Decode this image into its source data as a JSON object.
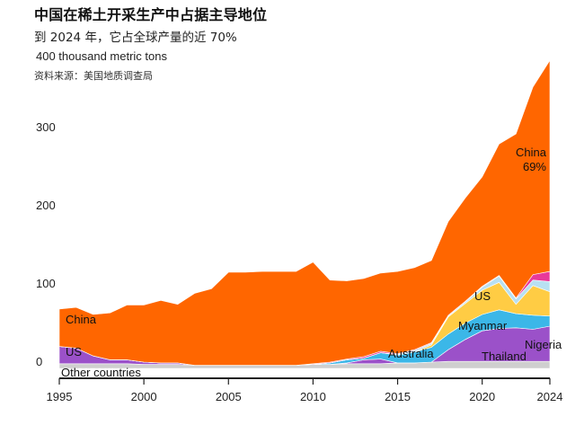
{
  "header": {
    "title": "中国在稀土开采生产中占据主导地位",
    "subtitle": "到 2024 年，它占全球产量的近 70%",
    "source": "资料来源：美国地质调查局"
  },
  "colors": {
    "China": "#ff6600",
    "US": "#9b51c9",
    "Myanmar": "#ffcc44",
    "Australia": "#3bb7e8",
    "Thailand": "#b8e0f2",
    "Nigeria": "#e8399a",
    "Other countries": "#cfcfcf",
    "axis": "#222222"
  },
  "chart_data": {
    "type": "area",
    "title": "中国在稀土开采生产中占据主导地位",
    "ylabel": "thousand metric tons",
    "unit_label": "400 thousand metric tons",
    "xlim": [
      1995,
      2024
    ],
    "ylim": [
      0,
      400
    ],
    "yticks": [
      0,
      100,
      200,
      300,
      400
    ],
    "xticks": [
      1995,
      2000,
      2005,
      2010,
      2015,
      2020,
      2024
    ],
    "x": [
      1995,
      1996,
      1997,
      1998,
      1999,
      2000,
      2001,
      2002,
      2003,
      2004,
      2005,
      2006,
      2007,
      2008,
      2009,
      2010,
      2011,
      2012,
      2013,
      2014,
      2015,
      2016,
      2017,
      2018,
      2019,
      2020,
      2021,
      2022,
      2023,
      2024
    ],
    "series": [
      {
        "name": "Other countries",
        "values": [
          6,
          6,
          6,
          6,
          6,
          5,
          5,
          5,
          4,
          4,
          4,
          4,
          4,
          4,
          4,
          5,
          5,
          6,
          6,
          6,
          7,
          7,
          8,
          9,
          9,
          9,
          9,
          9,
          9,
          9
        ]
      },
      {
        "name": "US",
        "values": [
          22,
          20,
          10,
          5,
          5,
          3,
          2,
          2,
          0,
          0,
          0,
          0,
          0,
          0,
          0,
          0,
          0,
          1,
          5,
          6,
          0,
          0,
          0,
          15,
          28,
          39,
          42,
          43,
          41,
          45
        ]
      },
      {
        "name": "Australia",
        "values": [
          0,
          0,
          0,
          0,
          0,
          0,
          0,
          0,
          0,
          0,
          0,
          0,
          0,
          0,
          0,
          0,
          2,
          4,
          2,
          8,
          10,
          14,
          19,
          20,
          21,
          21,
          24,
          18,
          18,
          13
        ]
      },
      {
        "name": "Myanmar",
        "values": [
          0,
          0,
          0,
          0,
          0,
          0,
          0,
          0,
          0,
          0,
          0,
          0,
          0,
          0,
          0,
          0,
          0,
          0,
          0,
          0,
          0,
          0,
          3,
          22,
          25,
          31,
          35,
          12,
          38,
          31
        ]
      },
      {
        "name": "Thailand",
        "values": [
          0,
          0,
          0,
          0,
          0,
          0,
          0,
          0,
          0,
          0,
          0,
          0,
          0,
          0,
          0,
          0,
          0,
          0,
          0,
          0,
          1,
          2,
          2,
          1,
          2,
          4,
          8,
          7,
          7,
          13
        ]
      },
      {
        "name": "Nigeria",
        "values": [
          0,
          0,
          0,
          0,
          0,
          0,
          0,
          0,
          0,
          0,
          0,
          0,
          0,
          0,
          0,
          1,
          1,
          1,
          2,
          2,
          1,
          1,
          1,
          1,
          1,
          1,
          1,
          1,
          7,
          13
        ]
      },
      {
        "name": "China",
        "values": [
          48,
          52,
          53,
          60,
          70,
          73,
          80,
          75,
          92,
          98,
          119,
          119,
          120,
          120,
          120,
          130,
          105,
          100,
          100,
          100,
          105,
          105,
          105,
          120,
          132,
          140,
          168,
          210,
          240,
          270
        ]
      }
    ],
    "labels": {
      "china_top": "China",
      "china_share": "69%",
      "china_left": "China",
      "us_right": "US",
      "us_left": "US",
      "myanmar": "Myanmar",
      "australia": "Australia",
      "thailand": "Thailand",
      "nigeria": "Nigeria",
      "other": "Other countries"
    }
  }
}
